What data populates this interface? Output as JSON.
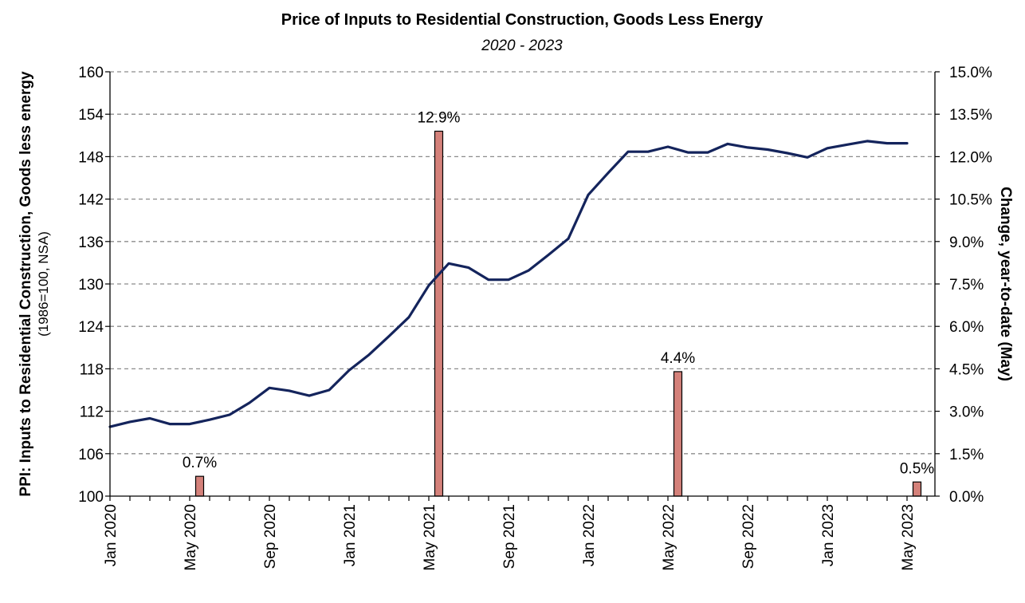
{
  "chart_data": {
    "type": "line+bar",
    "title": "Price of Inputs to Residential Construction, Goods Less Energy",
    "subtitle": "2020 - 2023",
    "ylabel_left": "PPI: Inputs to Residential Construction, Goods less energy",
    "ylabel_left_sub": "(1986=100, NSA)",
    "ylabel_right": "Change, year-to-date (May)",
    "ylim_left": [
      100,
      160
    ],
    "yticks_left": [
      100,
      106,
      112,
      118,
      124,
      130,
      136,
      142,
      148,
      154,
      160
    ],
    "ylim_right": [
      0,
      15
    ],
    "yticks_right": [
      "0.0%",
      "1.5%",
      "3.0%",
      "4.5%",
      "6.0%",
      "7.5%",
      "9.0%",
      "10.5%",
      "12.0%",
      "13.5%",
      "15.0%"
    ],
    "x_tick_labels": [
      "Jan 2020",
      "May 2020",
      "Sep 2020",
      "Jan 2021",
      "May 2021",
      "Sep 2021",
      "Jan 2022",
      "May 2022",
      "Sep 2022",
      "Jan 2023",
      "May 2023"
    ],
    "x_months": [
      "2020-01",
      "2020-02",
      "2020-03",
      "2020-04",
      "2020-05",
      "2020-06",
      "2020-07",
      "2020-08",
      "2020-09",
      "2020-10",
      "2020-11",
      "2020-12",
      "2021-01",
      "2021-02",
      "2021-03",
      "2021-04",
      "2021-05",
      "2021-06",
      "2021-07",
      "2021-08",
      "2021-09",
      "2021-10",
      "2021-11",
      "2021-12",
      "2022-01",
      "2022-02",
      "2022-03",
      "2022-04",
      "2022-05",
      "2022-06",
      "2022-07",
      "2022-08",
      "2022-09",
      "2022-10",
      "2022-11",
      "2022-12",
      "2023-01",
      "2023-02",
      "2023-03",
      "2023-04",
      "2023-05"
    ],
    "line_series": {
      "color": "#14245c",
      "values": [
        109.8,
        110.5,
        111.0,
        110.2,
        110.2,
        110.8,
        111.5,
        113.2,
        115.3,
        114.9,
        114.2,
        115.0,
        117.8,
        120.0,
        122.6,
        125.3,
        129.8,
        132.9,
        132.3,
        130.6,
        130.6,
        131.9,
        134.1,
        136.4,
        142.6,
        145.7,
        148.7,
        148.7,
        149.4,
        148.6,
        148.6,
        149.8,
        149.3,
        149.0,
        148.5,
        147.9,
        149.2,
        149.7,
        150.2,
        149.9,
        149.9
      ]
    },
    "bar_series": {
      "color": "#d4817a",
      "border": "#000000",
      "bars": [
        {
          "month": "2020-06",
          "value": 0.7,
          "label": "0.7%"
        },
        {
          "month": "2021-06",
          "value": 12.9,
          "label": "12.9%"
        },
        {
          "month": "2022-06",
          "value": 4.4,
          "label": "4.4%"
        },
        {
          "month": "2023-06",
          "value": 0.5,
          "label": "0.5%"
        }
      ]
    },
    "grid": "horizontal dashed",
    "legend": "none"
  }
}
